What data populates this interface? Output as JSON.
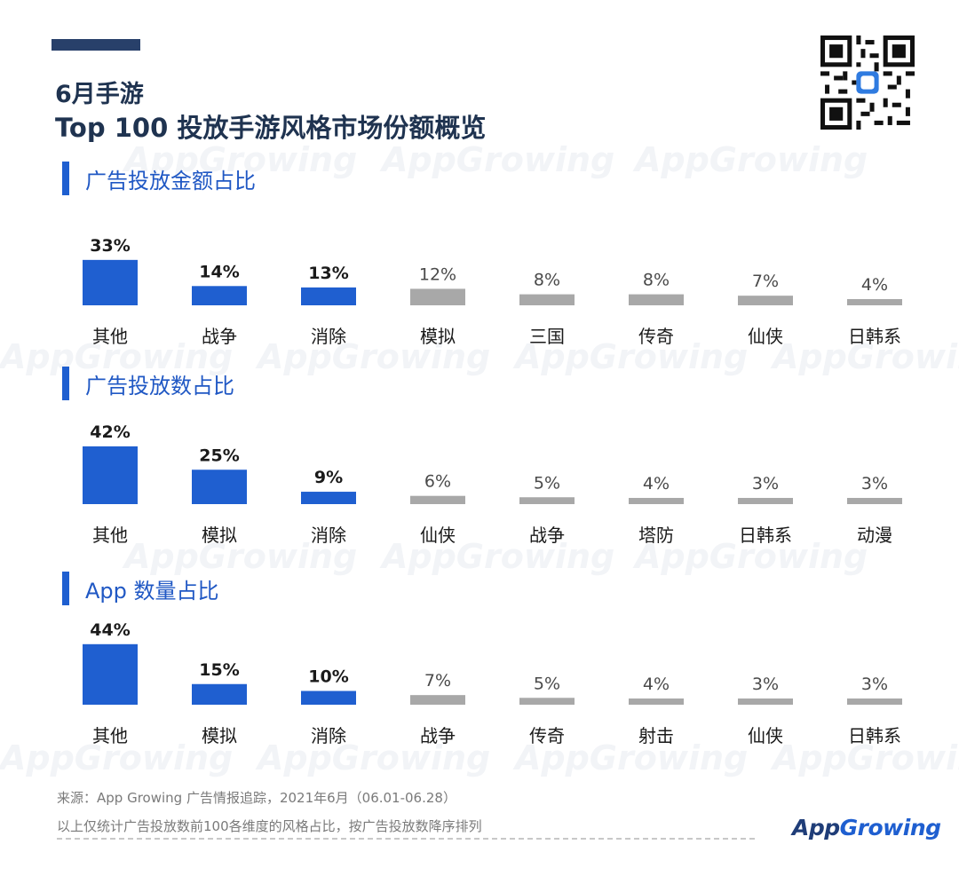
{
  "page": {
    "title_line1": "6月手游",
    "title_line2": "Top 100 投放手游风格市场份额概览",
    "source": "来源：App Growing 广告情报追踪，2021年6月（06.01-06.28）",
    "note": "以上仅统计广告投放数前100各维度的风格占比，按广告投放数降序排列",
    "brand_part1": "App",
    "brand_part2": "Growing",
    "watermark": "AppGrowing"
  },
  "colors": {
    "highlight": "#1f5fd0",
    "muted": "#a8a8a8",
    "accent_bar": "#1f5fd0"
  },
  "chart_data": [
    {
      "type": "bar",
      "title": "广告投放金额占比",
      "categories": [
        "其他",
        "战争",
        "消除",
        "模拟",
        "三国",
        "传奇",
        "仙侠",
        "日韩系"
      ],
      "values": [
        33,
        14,
        13,
        12,
        8,
        8,
        7,
        4
      ],
      "labels": [
        "33%",
        "14%",
        "13%",
        "12%",
        "8%",
        "8%",
        "7%",
        "4%"
      ],
      "highlight_count": 3
    },
    {
      "type": "bar",
      "title": "广告投放数占比",
      "categories": [
        "其他",
        "模拟",
        "消除",
        "仙侠",
        "战争",
        "塔防",
        "日韩系",
        "动漫"
      ],
      "values": [
        42,
        25,
        9,
        6,
        5,
        4,
        3,
        3
      ],
      "labels": [
        "42%",
        "25%",
        "9%",
        "6%",
        "5%",
        "4%",
        "3%",
        "3%"
      ],
      "highlight_count": 3
    },
    {
      "type": "bar",
      "title": "App 数量占比",
      "categories": [
        "其他",
        "模拟",
        "消除",
        "战争",
        "传奇",
        "射击",
        "仙侠",
        "日韩系"
      ],
      "values": [
        44,
        15,
        10,
        7,
        5,
        4,
        3,
        3
      ],
      "labels": [
        "44%",
        "15%",
        "10%",
        "7%",
        "5%",
        "4%",
        "3%",
        "3%"
      ],
      "highlight_count": 3
    }
  ]
}
